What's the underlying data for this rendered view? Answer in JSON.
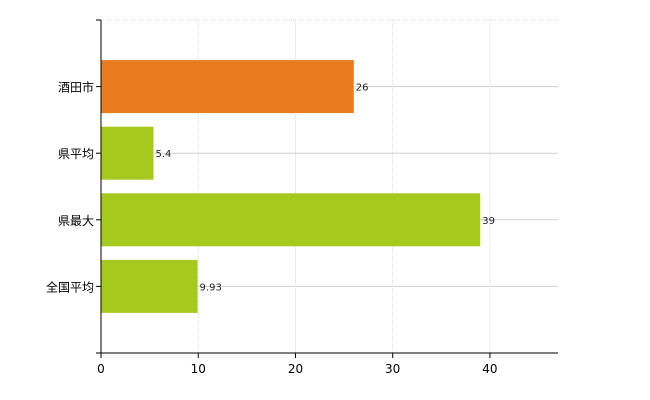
{
  "chart_data": {
    "type": "bar",
    "orientation": "horizontal",
    "categories": [
      "酒田市",
      "県平均",
      "県最大",
      "全国平均"
    ],
    "values": [
      26,
      5.4,
      39,
      9.93
    ],
    "value_labels": [
      "26",
      "5.4",
      "39",
      "9.93"
    ],
    "bar_colors": [
      "#e87c1e",
      "#a5c91f",
      "#a5c91f",
      "#a5c91f"
    ],
    "xlim": [
      0,
      47
    ],
    "x_ticks": [
      0,
      10,
      20,
      30,
      40
    ],
    "x_tick_labels": [
      "0",
      "10",
      "20",
      "30",
      "40"
    ],
    "grid": true,
    "title": "",
    "xlabel": "",
    "ylabel": ""
  }
}
